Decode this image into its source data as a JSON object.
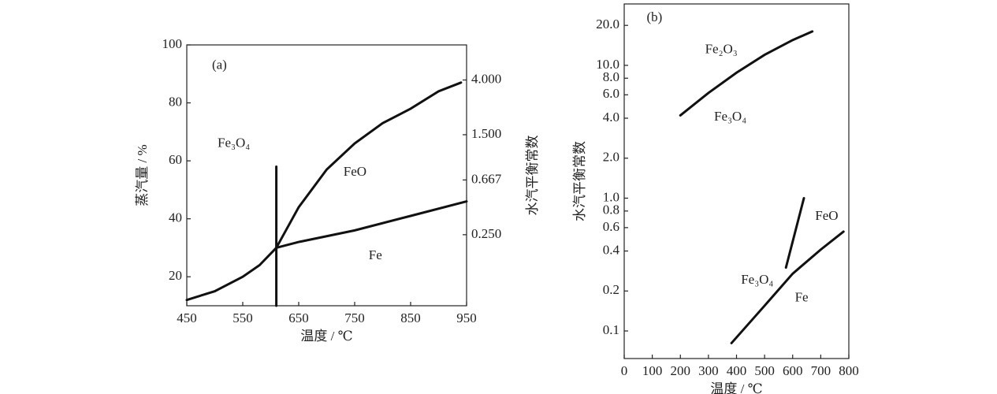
{
  "chart_data": [
    {
      "type": "line",
      "color": "#111111",
      "annotations": [
        "(a)",
        "Fe₃O₄",
        "FeO",
        "Fe"
      ],
      "xlabel": "温度 / ℃",
      "ylabel": "蒸汽量 / %",
      "y2label": "水汽平衡常数",
      "xlim": [
        450,
        950
      ],
      "xticks": [
        450,
        550,
        650,
        750,
        850,
        950
      ],
      "ylim": [
        10,
        100
      ],
      "yticks": [
        20,
        40,
        60,
        80,
        100
      ],
      "y2lim": [
        0.07,
        7.5
      ],
      "y2log": true,
      "y2ticks": [
        {
          "value": 4,
          "label": "4.000"
        },
        {
          "value": 1.5,
          "label": "1.500"
        },
        {
          "value": 0.667,
          "label": "0.667"
        },
        {
          "value": 0.25,
          "label": "0.250"
        }
      ],
      "series": [
        {
          "x": [
            450,
            500,
            550,
            580,
            600,
            610
          ],
          "values": [
            12,
            15,
            20,
            24,
            28,
            30
          ]
        },
        {
          "x": [
            610,
            650,
            700,
            750,
            800,
            850,
            900,
            940
          ],
          "values": [
            30,
            44,
            57,
            66,
            73,
            78,
            84,
            87
          ]
        },
        {
          "x": [
            610,
            650,
            750,
            850,
            950
          ],
          "values": [
            30,
            32,
            36,
            41,
            46
          ]
        },
        {
          "x": [
            610,
            610
          ],
          "values": [
            10,
            58
          ]
        }
      ]
    },
    {
      "type": "line",
      "color": "#111111",
      "annotations": [
        "(b)",
        "Fe₂O₃",
        "Fe₃O₄",
        "FeO",
        "Fe₃O₄",
        "Fe"
      ],
      "xlabel": "温度 / ℃",
      "ylabel": "水汽平衡常数",
      "xlim": [
        0,
        800
      ],
      "xticks": [
        0,
        100,
        200,
        300,
        400,
        500,
        600,
        700,
        800
      ],
      "ylim": [
        0.062,
        29
      ],
      "ylog": true,
      "yticks": [
        0.1,
        0.2,
        0.4,
        0.6,
        0.8,
        {
          "value": 1,
          "label": "1.0"
        },
        {
          "value": 2,
          "label": "2.0"
        },
        {
          "value": 4,
          "label": "4.0"
        },
        {
          "value": 6,
          "label": "6.0"
        },
        {
          "value": 8,
          "label": "8.0"
        },
        {
          "value": 10,
          "label": "10.0"
        },
        {
          "value": 20,
          "label": "20.0"
        }
      ],
      "series": [
        {
          "x": [
            200,
            300,
            400,
            500,
            600,
            670
          ],
          "values": [
            4.2,
            6.2,
            8.8,
            12,
            15.5,
            18
          ]
        },
        {
          "x": [
            576,
            640
          ],
          "values": [
            0.3,
            1
          ]
        },
        {
          "x": [
            382,
            500,
            600,
            700,
            781
          ],
          "values": [
            0.081,
            0.155,
            0.27,
            0.41,
            0.56
          ]
        }
      ]
    }
  ]
}
